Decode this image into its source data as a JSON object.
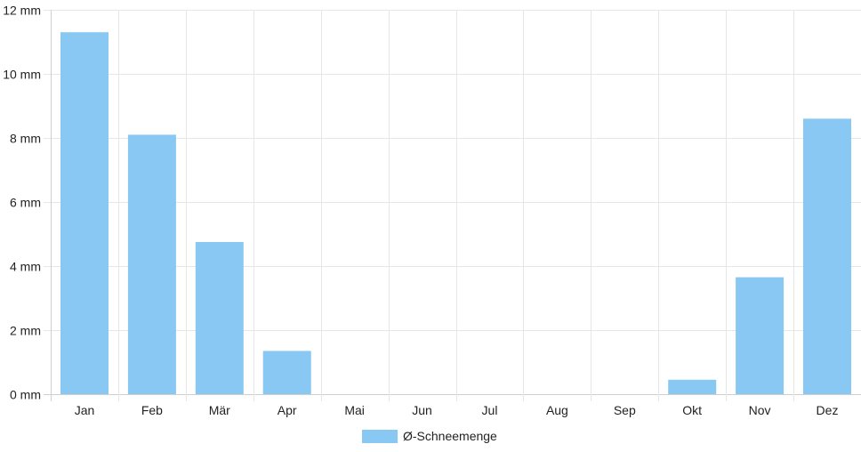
{
  "chart_data": {
    "type": "bar",
    "categories": [
      "Jan",
      "Feb",
      "Mär",
      "Apr",
      "Mai",
      "Jun",
      "Jul",
      "Aug",
      "Sep",
      "Okt",
      "Nov",
      "Dez"
    ],
    "series": [
      {
        "name": "Ø-Schneemenge",
        "values": [
          11.3,
          8.1,
          4.75,
          1.35,
          0,
          0,
          0,
          0,
          0,
          0.45,
          3.65,
          8.6
        ]
      }
    ],
    "y_ticks": [
      "0 mm",
      "2 mm",
      "4 mm",
      "6 mm",
      "8 mm",
      "10 mm",
      "12 mm"
    ],
    "ylim": [
      0,
      12
    ],
    "grid": true,
    "legend_position": "bottom",
    "colors": {
      "bar": "#88c8f2",
      "grid": "#e6e6e6",
      "text": "#222222"
    }
  }
}
